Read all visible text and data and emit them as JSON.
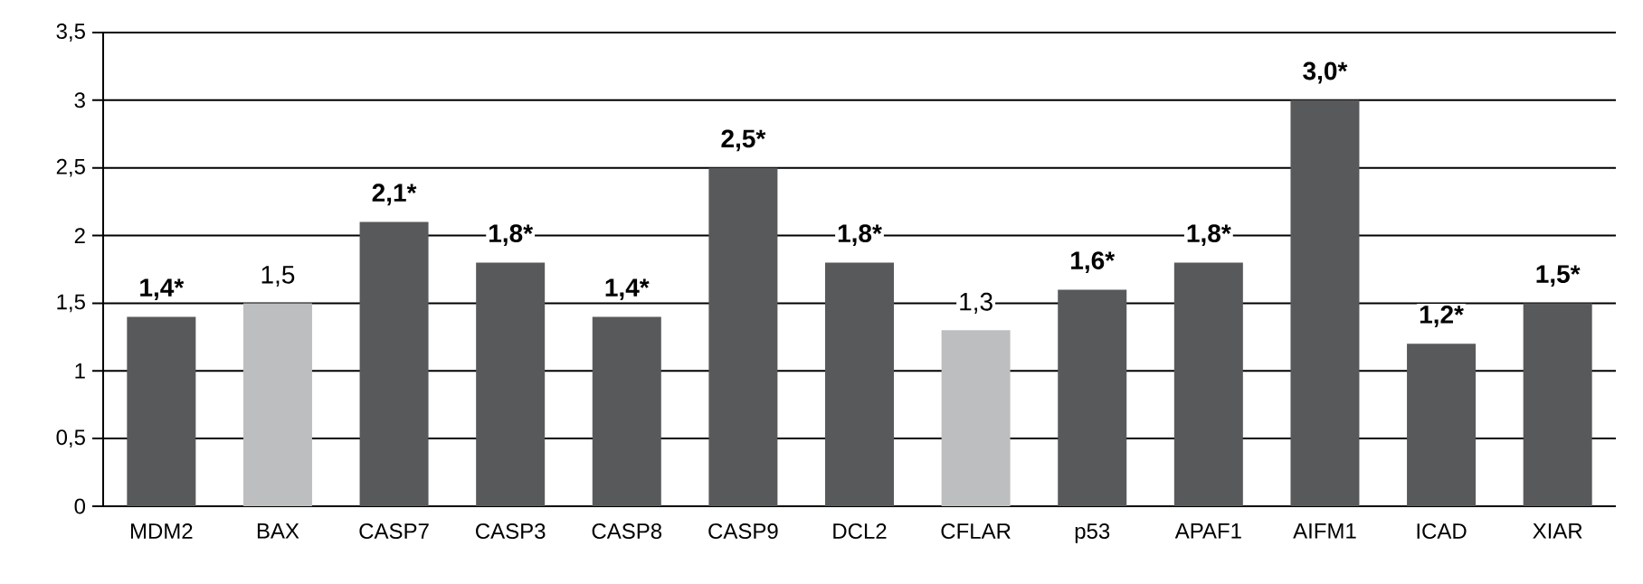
{
  "chart_data": {
    "type": "bar",
    "categories": [
      "MDM2",
      "BAX",
      "CASP7",
      "CASP3",
      "CASP8",
      "CASP9",
      "DCL2",
      "CFLAR",
      "p53",
      "APAF1",
      "AIFM1",
      "ICAD",
      "XIAR"
    ],
    "values": [
      1.4,
      1.5,
      2.1,
      1.8,
      1.4,
      2.5,
      1.8,
      1.3,
      1.6,
      1.8,
      3.0,
      1.2,
      1.5
    ],
    "value_labels": [
      "1,4*",
      "1,5",
      "2,1*",
      "1,8*",
      "1,4*",
      "2,5*",
      "1,8*",
      "1,3",
      "1,6*",
      "1,8*",
      "3,0*",
      "1,2*",
      "1,5*"
    ],
    "colors": [
      "#58595b",
      "#bcbec0",
      "#58595b",
      "#58595b",
      "#58595b",
      "#58595b",
      "#58595b",
      "#bcbec0",
      "#58595b",
      "#58595b",
      "#58595b",
      "#58595b",
      "#58595b"
    ],
    "ylim": [
      0,
      3.5
    ],
    "yticks": [
      0,
      {
        "value": 0.5,
        "label": "0,5"
      },
      1,
      {
        "value": 1.5,
        "label": "1,5"
      },
      2,
      {
        "value": 2.5,
        "label": "2,5"
      },
      3,
      {
        "value": 3.5,
        "label": "3,5"
      }
    ],
    "grid": "y"
  }
}
